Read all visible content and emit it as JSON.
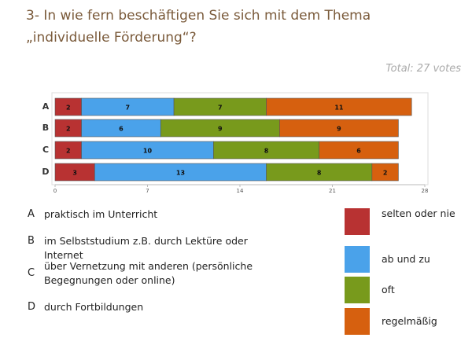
{
  "chart_data": {
    "type": "stacked-bar-horizontal",
    "title": "3- In wie fern beschäftigen Sie sich mit dem Thema „individuelle Förderung“?",
    "subtitle": "Total: 27 votes",
    "categories": [
      "A",
      "B",
      "C",
      "D"
    ],
    "category_descriptions": [
      "praktisch im Unterricht",
      "im Selbststudium z.B. durch Lektüre oder Internet",
      "über Vernetzung mit anderen (persönliche Begegnungen oder online)",
      "durch Fortbildungen"
    ],
    "series": [
      {
        "name": "selten oder nie",
        "color": "#b83232",
        "values": [
          2,
          2,
          2,
          3
        ]
      },
      {
        "name": "ab und zu",
        "color": "#4aa2ea",
        "values": [
          7,
          6,
          10,
          13
        ]
      },
      {
        "name": "oft",
        "color": "#789a1c",
        "values": [
          7,
          9,
          8,
          8
        ]
      },
      {
        "name": "regelmäßig",
        "color": "#d6600f",
        "values": [
          11,
          9,
          6,
          2
        ]
      }
    ],
    "xlim": [
      0,
      28
    ],
    "xticks": [
      0,
      7,
      14,
      21,
      28
    ]
  }
}
